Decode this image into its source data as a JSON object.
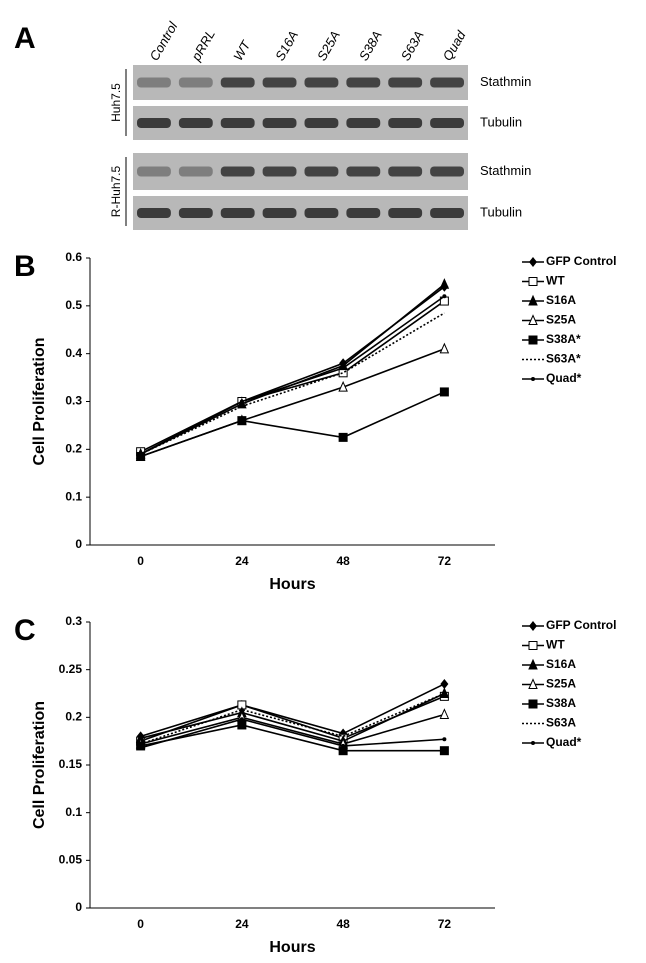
{
  "blot": {
    "panel_label": "A",
    "lanes": [
      "Control",
      "pRRL",
      "WT",
      "S16A",
      "S25A",
      "S38A",
      "S63A",
      "Quad"
    ],
    "groups": [
      {
        "cell_line": "Huh7.5",
        "proteins": [
          "Stathmin",
          "Tubulin"
        ]
      },
      {
        "cell_line": "R-Huh7.5",
        "proteins": [
          "Stathmin",
          "Tubulin"
        ]
      }
    ]
  },
  "chart_data": [
    {
      "type": "line",
      "panel_label": "B",
      "x_label": "Hours",
      "y_label": "Cell Proliferation",
      "categories": [
        "0",
        "24",
        "48",
        "72"
      ],
      "ylim": [
        0,
        0.6
      ],
      "yticks": [
        0,
        0.1,
        0.2,
        0.3,
        0.4,
        0.5,
        0.6
      ],
      "series": [
        {
          "name": "GFP Control",
          "color": "#000000",
          "marker": "diamond",
          "dash": "solid",
          "values": [
            0.19,
            0.3,
            0.38,
            0.54
          ]
        },
        {
          "name": "WT",
          "color": "#000000",
          "marker": "square-open",
          "dash": "solid",
          "values": [
            0.195,
            0.3,
            0.36,
            0.51
          ]
        },
        {
          "name": "S16A",
          "color": "#000000",
          "marker": "triangle",
          "dash": "solid",
          "values": [
            0.19,
            0.295,
            0.375,
            0.545
          ]
        },
        {
          "name": "S25A",
          "color": "#000000",
          "marker": "triangle-open",
          "dash": "solid",
          "values": [
            0.185,
            0.26,
            0.33,
            0.41
          ]
        },
        {
          "name": "S38A*",
          "color": "#000000",
          "marker": "square",
          "dash": "solid",
          "values": [
            0.185,
            0.26,
            0.225,
            0.32
          ]
        },
        {
          "name": "S63A*",
          "color": "#000000",
          "marker": "none",
          "dash": "dotted",
          "values": [
            0.19,
            0.29,
            0.36,
            0.485
          ]
        },
        {
          "name": "Quad*",
          "color": "#000000",
          "marker": "dot",
          "dash": "solid",
          "values": [
            0.19,
            0.3,
            0.37,
            0.52
          ]
        }
      ]
    },
    {
      "type": "line",
      "panel_label": "C",
      "x_label": "Hours",
      "y_label": "Cell Proliferation",
      "categories": [
        "0",
        "24",
        "48",
        "72"
      ],
      "ylim": [
        0,
        0.3
      ],
      "yticks": [
        0,
        0.05,
        0.1,
        0.15,
        0.2,
        0.25,
        0.3
      ],
      "series": [
        {
          "name": "GFP Control",
          "color": "#000000",
          "marker": "diamond",
          "dash": "solid",
          "values": [
            0.18,
            0.213,
            0.183,
            0.235
          ]
        },
        {
          "name": "WT",
          "color": "#000000",
          "marker": "square-open",
          "dash": "solid",
          "values": [
            0.175,
            0.213,
            0.178,
            0.222
          ]
        },
        {
          "name": "S16A",
          "color": "#000000",
          "marker": "triangle",
          "dash": "solid",
          "values": [
            0.178,
            0.205,
            0.175,
            0.225
          ]
        },
        {
          "name": "S25A",
          "color": "#000000",
          "marker": "triangle-open",
          "dash": "solid",
          "values": [
            0.172,
            0.2,
            0.172,
            0.203
          ]
        },
        {
          "name": "S38A",
          "color": "#000000",
          "marker": "square",
          "dash": "solid",
          "values": [
            0.17,
            0.192,
            0.165,
            0.165
          ]
        },
        {
          "name": "S63A",
          "color": "#000000",
          "marker": "none",
          "dash": "dotted",
          "values": [
            0.172,
            0.208,
            0.18,
            0.225
          ]
        },
        {
          "name": "Quad*",
          "color": "#000000",
          "marker": "dot",
          "dash": "solid",
          "values": [
            0.168,
            0.198,
            0.17,
            0.177
          ]
        }
      ]
    }
  ]
}
